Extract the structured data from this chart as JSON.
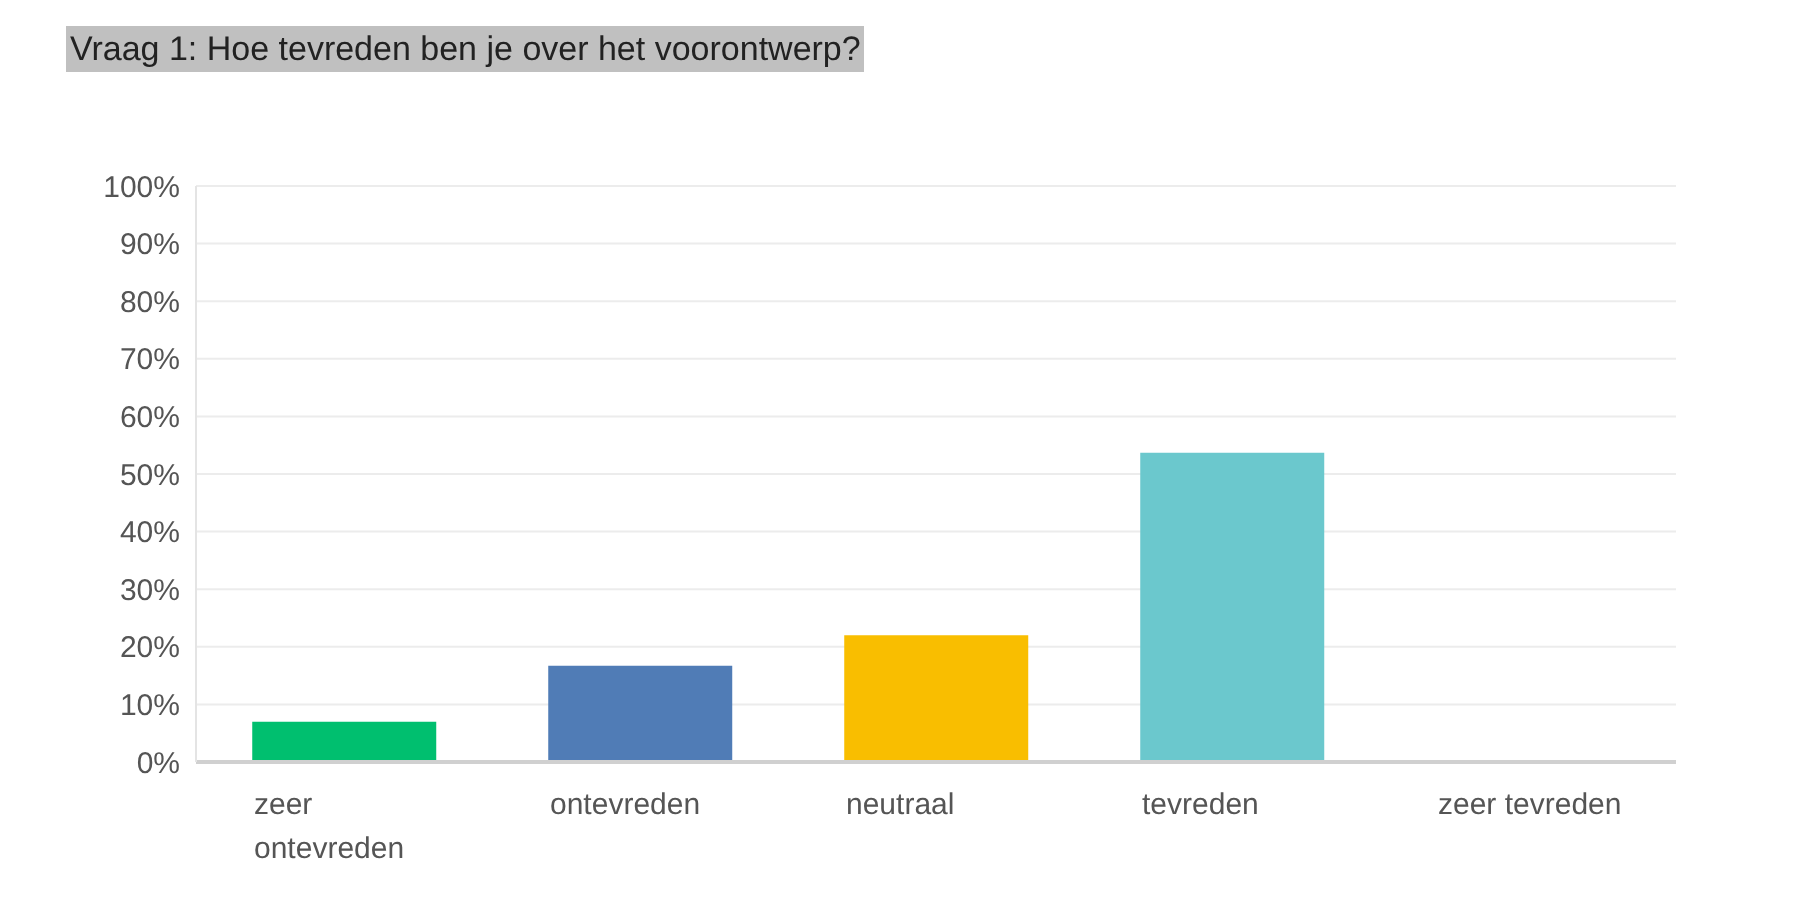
{
  "chart_data": {
    "type": "bar",
    "title": "Vraag 1: Hoe tevreden ben je over het voorontwerp?",
    "categories": [
      "zeer ontevreden",
      "ontevreden",
      "neutraal",
      "tevreden",
      "zeer tevreden"
    ],
    "values": [
      7,
      16.7,
      22,
      53.7,
      0
    ],
    "colors": [
      "#00bf6f",
      "#507cb6",
      "#f9be00",
      "#6bc8cd",
      "#dbdbdb"
    ],
    "ylim": [
      0,
      100
    ],
    "yticks": [
      {
        "value": 0,
        "label": "0%"
      },
      {
        "value": 10,
        "label": "10%"
      },
      {
        "value": 20,
        "label": "20%"
      },
      {
        "value": 30,
        "label": "30%"
      },
      {
        "value": 40,
        "label": "40%"
      },
      {
        "value": 50,
        "label": "50%"
      },
      {
        "value": 60,
        "label": "60%"
      },
      {
        "value": 70,
        "label": "70%"
      },
      {
        "value": 80,
        "label": "80%"
      },
      {
        "value": 90,
        "label": "90%"
      },
      {
        "value": 100,
        "label": "100%"
      }
    ],
    "grid": "y",
    "legend": false
  }
}
